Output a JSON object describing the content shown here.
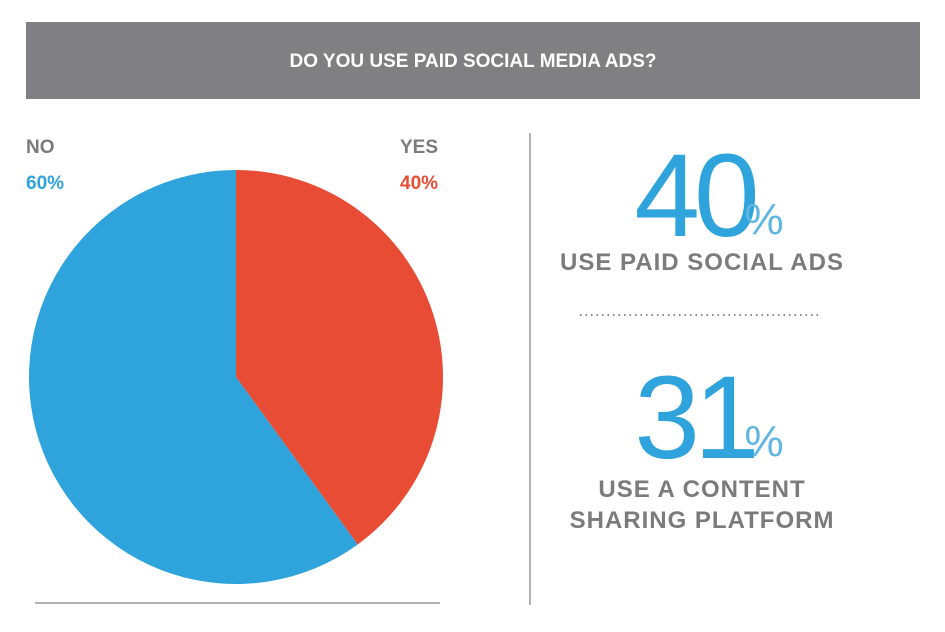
{
  "chart_data": {
    "type": "pie",
    "title": "DO YOU USE PAID SOCIAL MEDIA ADS?",
    "categories": [
      "YES",
      "NO"
    ],
    "values": [
      40,
      60
    ],
    "value_labels": [
      "40%",
      "60%"
    ],
    "colors": [
      "#e84c34",
      "#2ea3dc"
    ]
  },
  "stats": [
    {
      "value": 40,
      "unit": "%",
      "label_lines": [
        "USE PAID SOCIAL ADS"
      ]
    },
    {
      "value": 31,
      "unit": "%",
      "label_lines": [
        "USE A CONTENT",
        "SHARING PLATFORM"
      ]
    }
  ]
}
